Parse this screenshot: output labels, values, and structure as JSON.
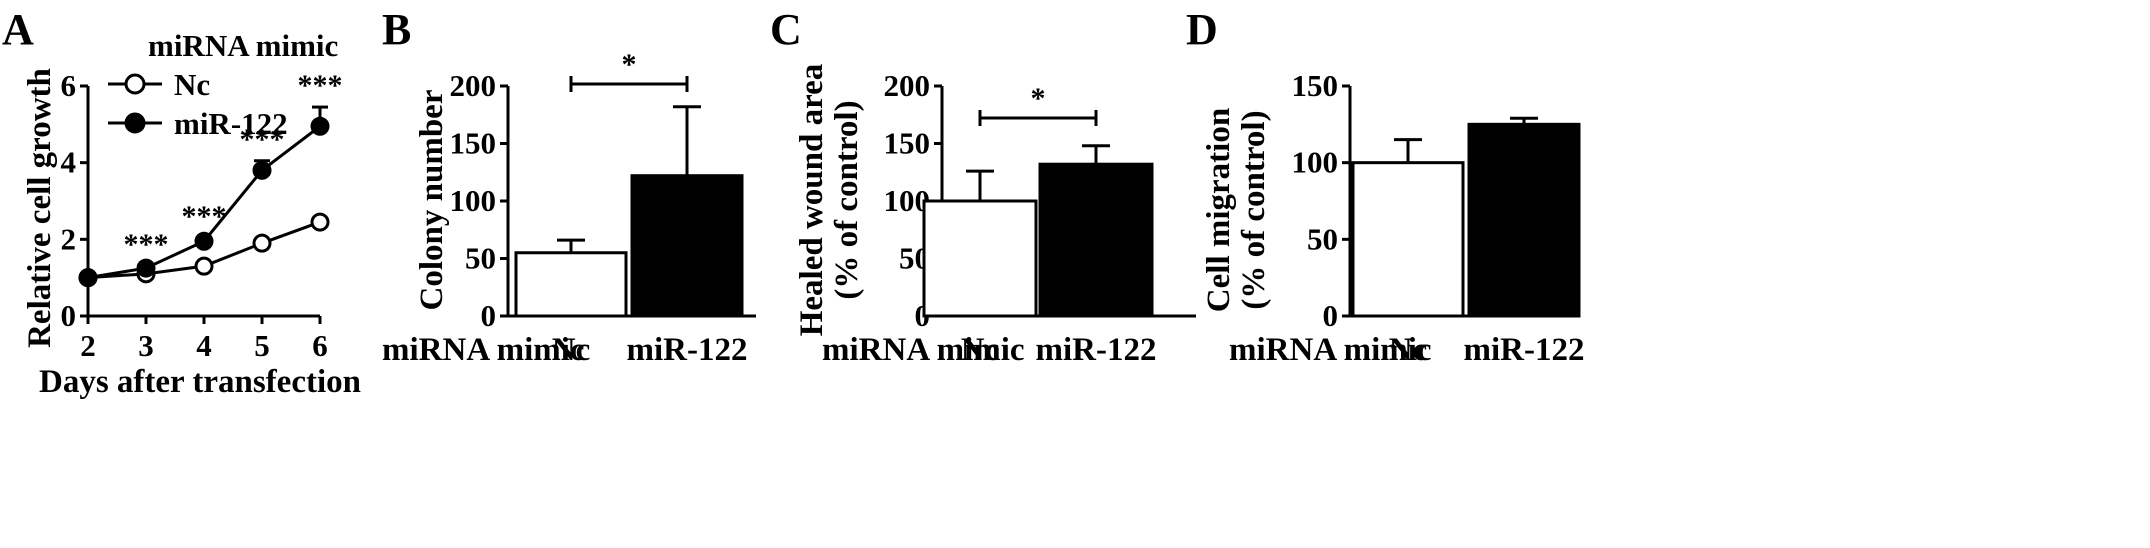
{
  "chart_data": [
    {
      "panel": "A",
      "type": "line",
      "xlabel": "Days after transfection",
      "ylabel": "Relative cell growth",
      "legend_title": "miRNA mimic",
      "x": [
        2,
        3,
        4,
        5,
        6
      ],
      "xlim": [
        2,
        6
      ],
      "ylim": [
        0,
        6
      ],
      "yticks": [
        0,
        2,
        4,
        6
      ],
      "series": [
        {
          "name": "Nc",
          "marker": "open-circle",
          "values": [
            1.0,
            1.1,
            1.3,
            1.9,
            2.45
          ],
          "errors": [
            0.05,
            0.05,
            0.06,
            0.08,
            0.08
          ]
        },
        {
          "name": "miR-122",
          "marker": "filled-circle",
          "values": [
            1.0,
            1.25,
            1.95,
            3.8,
            4.95
          ],
          "errors": [
            0.05,
            0.06,
            0.08,
            0.25,
            0.5
          ]
        }
      ],
      "annotations": [
        {
          "x": 3,
          "text": "***"
        },
        {
          "x": 4,
          "text": "***"
        },
        {
          "x": 5,
          "text": "***"
        },
        {
          "x": 6,
          "text": "***"
        }
      ]
    },
    {
      "panel": "B",
      "type": "bar",
      "ylabel": "Colony number",
      "group_label": "miRNA mimic",
      "categories": [
        "Nc",
        "miR-122"
      ],
      "values": [
        55,
        122
      ],
      "errors": [
        11,
        60
      ],
      "fills": [
        "#ffffff",
        "#000000"
      ],
      "ylim": [
        0,
        200
      ],
      "yticks": [
        0,
        50,
        100,
        150,
        200
      ],
      "significance": "*"
    },
    {
      "panel": "C",
      "type": "bar",
      "ylabel": "Healed wound area",
      "ylabel_sub": "(% of control)",
      "group_label": "miRNA mimic",
      "categories": [
        "Nc",
        "miR-122"
      ],
      "values": [
        100,
        132
      ],
      "errors": [
        26,
        16
      ],
      "fills": [
        "#ffffff",
        "#000000"
      ],
      "ylim": [
        0,
        200
      ],
      "yticks": [
        0,
        50,
        100,
        150,
        200
      ],
      "significance": "*"
    },
    {
      "panel": "D",
      "type": "bar",
      "ylabel": "Cell migration",
      "ylabel_sub": "(% of control)",
      "group_label": "miRNA mimic",
      "categories": [
        "Nc",
        "miR-122"
      ],
      "values": [
        100,
        125
      ],
      "errors": [
        15,
        4
      ],
      "fills": [
        "#ffffff",
        "#000000"
      ],
      "ylim": [
        0,
        150
      ],
      "yticks": [
        0,
        50,
        100,
        150
      ],
      "significance": ""
    }
  ]
}
